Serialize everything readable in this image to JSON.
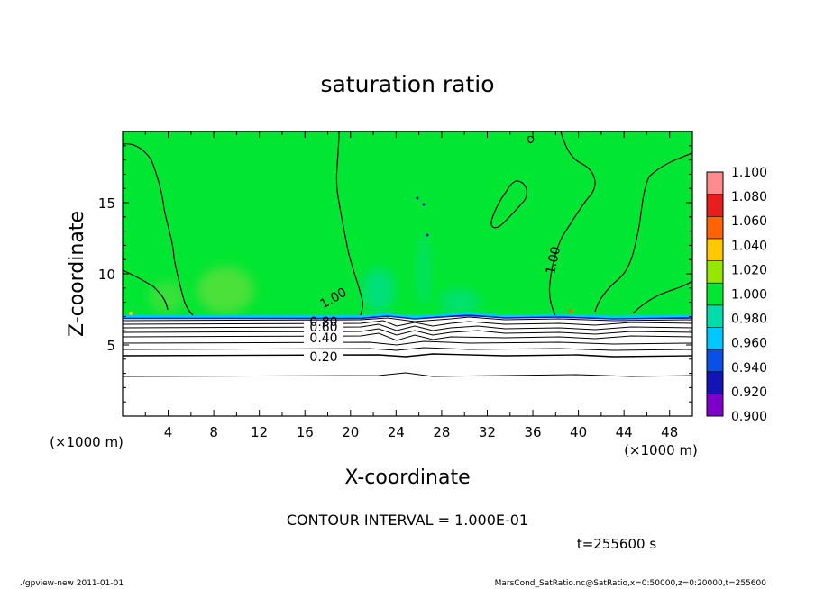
{
  "chart_data": {
    "type": "heatmap",
    "title": "saturation ratio",
    "xlabel": "X-coordinate",
    "ylabel": "Z-coordinate",
    "x_unit": "(×1000 m)",
    "xlim": [
      0,
      50
    ],
    "ylim": [
      0,
      20
    ],
    "x_ticks": [
      "4",
      "8",
      "12",
      "16",
      "20",
      "24",
      "28",
      "32",
      "36",
      "40",
      "44",
      "48"
    ],
    "x_tick_values": [
      4,
      8,
      12,
      16,
      20,
      24,
      28,
      32,
      36,
      40,
      44,
      48
    ],
    "y_ticks": [
      "5",
      "10",
      "15"
    ],
    "y_tick_values": [
      5,
      10,
      15
    ],
    "colorbar": {
      "levels": [
        "0.900",
        "0.920",
        "0.940",
        "0.960",
        "0.980",
        "1.000",
        "1.020",
        "1.040",
        "1.060",
        "1.080",
        "1.100"
      ],
      "colors": [
        "#7d00c8",
        "#1414b4",
        "#0a50e6",
        "#00c8ff",
        "#00dcaa",
        "#00e632",
        "#96e600",
        "#ffc800",
        "#ff6400",
        "#e61e1e",
        "#ff8c8c"
      ]
    },
    "contour_labels": [
      {
        "text": "0.20",
        "value": 0.2,
        "x": 17.8,
        "z": 4.3
      },
      {
        "text": "0.40",
        "value": 0.4,
        "x": 17.8,
        "z": 5.3
      },
      {
        "text": "0.60",
        "value": 0.6,
        "x": 17.8,
        "z": 6.2
      },
      {
        "text": "0.80",
        "value": 0.8,
        "x": 17.8,
        "z": 6.7
      },
      {
        "text": "1.00",
        "value": 1.0,
        "x": 19.0,
        "z": 8.3
      },
      {
        "text": "1.00",
        "value": 1.0,
        "x": 38.3,
        "z": 11.2
      }
    ],
    "contour_interval_text": "CONTOUR INTERVAL = 1.000E-01",
    "time_text": "t=255600 s",
    "footer_left": "./gpview-new  2011-01-01",
    "footer_right": "MarsCond_SatRatio.nc@SatRatio,x=0:50000,z=0:20000,t=255600"
  },
  "colors": {
    "field_green": "#00e632",
    "subsat_white": "#ffffff",
    "light_green": "#6be040",
    "cyan": "#00c8ff",
    "blue": "#1414b4"
  }
}
